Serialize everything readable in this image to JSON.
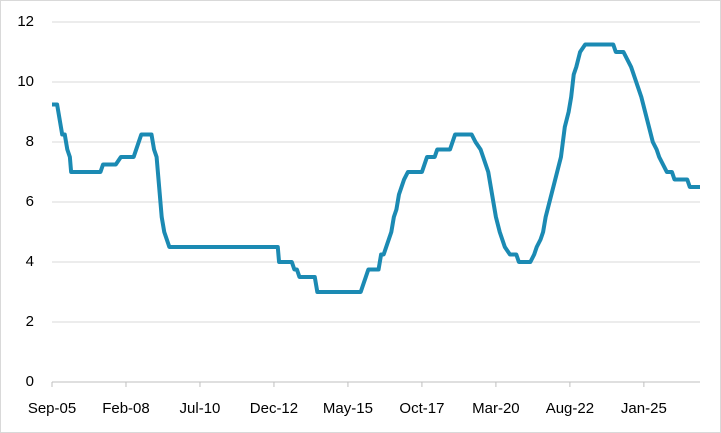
{
  "chart_data": {
    "type": "line",
    "x": [
      0,
      2,
      4,
      5,
      6,
      7,
      7.5,
      19,
      20,
      25,
      27,
      32,
      33,
      34,
      35,
      39,
      40,
      41,
      42,
      43,
      44,
      45,
      46,
      88.5,
      89,
      94,
      95,
      96,
      97,
      103,
      104,
      121,
      122,
      123,
      124,
      128,
      129,
      130,
      131,
      133,
      134,
      135,
      136,
      137,
      138,
      139.5,
      145,
      146,
      147,
      150,
      151,
      156,
      157,
      158,
      164.5,
      166,
      168,
      169,
      170,
      171,
      172,
      173,
      174,
      175.5,
      177.5,
      179.5,
      182,
      183,
      187.5,
      189,
      190,
      191.5,
      192.5,
      193.5,
      195,
      196.5,
      198,
      199.5,
      201,
      202.5,
      203.5,
      204.5,
      205.5,
      207,
      209,
      220,
      221,
      224,
      225.5,
      227,
      229,
      231,
      232.5,
      234,
      235.5,
      237,
      238,
      241,
      243,
      244,
      249,
      250,
      254
    ],
    "series": [
      {
        "color": "#1b8ab3",
        "values": [
          9.25,
          9.25,
          8.25,
          8.25,
          7.75,
          7.5,
          7.0,
          7.0,
          7.25,
          7.25,
          7.5,
          7.5,
          7.75,
          8.0,
          8.25,
          8.25,
          7.75,
          7.5,
          6.5,
          5.5,
          5.0,
          4.75,
          4.5,
          4.5,
          4.0,
          4.0,
          3.75,
          3.75,
          3.5,
          3.5,
          3.0,
          3.0,
          3.25,
          3.5,
          3.75,
          3.75,
          4.25,
          4.25,
          4.5,
          5.0,
          5.5,
          5.75,
          6.25,
          6.5,
          6.75,
          7.0,
          7.0,
          7.25,
          7.5,
          7.5,
          7.75,
          7.75,
          8.0,
          8.25,
          8.25,
          8.0,
          7.75,
          7.5,
          7.25,
          7.0,
          6.5,
          6.0,
          5.5,
          5.0,
          4.5,
          4.25,
          4.25,
          4.0,
          4.0,
          4.25,
          4.5,
          4.75,
          5.0,
          5.5,
          6.0,
          6.5,
          7.0,
          7.5,
          8.5,
          9.0,
          9.5,
          10.25,
          10.5,
          11.0,
          11.25,
          11.25,
          11.0,
          11.0,
          10.75,
          10.5,
          10.0,
          9.5,
          9.0,
          8.5,
          8.0,
          7.75,
          7.5,
          7.0,
          7.0,
          6.75,
          6.75,
          6.5,
          6.5
        ]
      }
    ],
    "xlim": [
      0,
      254
    ],
    "xticks": [
      {
        "value": 0,
        "label": "Sep-05"
      },
      {
        "value": 29,
        "label": "Feb-08"
      },
      {
        "value": 58,
        "label": "Jul-10"
      },
      {
        "value": 87,
        "label": "Dec-12"
      },
      {
        "value": 116,
        "label": "May-15"
      },
      {
        "value": 145,
        "label": "Oct-17"
      },
      {
        "value": 174,
        "label": "Mar-20"
      },
      {
        "value": 203,
        "label": "Aug-22"
      },
      {
        "value": 232,
        "label": "Jan-25"
      }
    ],
    "ylim": [
      0,
      12
    ],
    "yticks": [
      0,
      2,
      4,
      6,
      8,
      10,
      12
    ],
    "grid": true
  }
}
